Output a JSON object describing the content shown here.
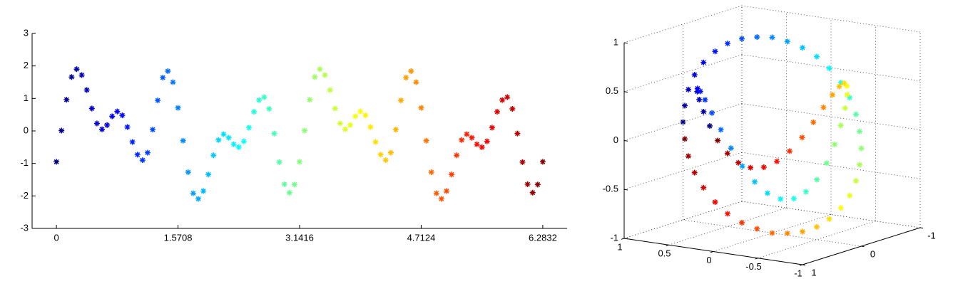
{
  "chart_data": [
    {
      "type": "scatter",
      "marker": "*",
      "colormap": "jet",
      "x": [
        0,
        0.0654,
        0.1309,
        0.1963,
        0.2618,
        0.3272,
        0.3927,
        0.4581,
        0.5236,
        0.589,
        0.6545,
        0.7199,
        0.7854,
        0.8508,
        0.9163,
        0.9817,
        1.0472,
        1.1126,
        1.1781,
        1.2435,
        1.309,
        1.3744,
        1.4399,
        1.5053,
        1.5708,
        1.6362,
        1.7017,
        1.7671,
        1.8326,
        1.898,
        1.9635,
        2.0289,
        2.0944,
        2.1598,
        2.2253,
        2.2907,
        2.3562,
        2.4216,
        2.4871,
        2.5525,
        2.618,
        2.6834,
        2.7489,
        2.8143,
        2.8798,
        2.9452,
        3.0107,
        3.0761,
        3.1416,
        3.207,
        3.2725,
        3.3379,
        3.4034,
        3.4688,
        3.5343,
        3.5997,
        3.6652,
        3.7306,
        3.7961,
        3.8615,
        3.927,
        3.9924,
        4.0579,
        4.1233,
        4.1888,
        4.2542,
        4.3197,
        4.3851,
        4.4506,
        4.516,
        4.5815,
        4.6469,
        4.7124,
        4.7778,
        4.8433,
        4.9087,
        4.9742,
        5.0396,
        5.1051,
        5.1705,
        5.236,
        5.3014,
        5.3669,
        5.4323,
        5.4978,
        5.5632,
        5.6287,
        5.6941,
        5.7596,
        5.825,
        5.8905,
        5.9559,
        6.0214,
        6.0868,
        6.1523,
        6.2177,
        6.2832
      ],
      "values": [
        -0.95,
        0.01,
        0.96,
        1.66,
        1.9,
        1.72,
        1.26,
        0.69,
        0.23,
        0.05,
        0.18,
        0.45,
        0.6,
        0.48,
        0.12,
        -0.34,
        -0.73,
        -0.9,
        -0.67,
        0.04,
        0.94,
        1.64,
        1.84,
        1.5,
        0.71,
        -0.3,
        -1.27,
        -1.92,
        -2.09,
        -1.85,
        -1.34,
        -0.75,
        -0.28,
        -0.1,
        -0.21,
        -0.41,
        -0.5,
        -0.32,
        0.1,
        0.59,
        0.95,
        1.04,
        0.68,
        -0.08,
        -0.96,
        -1.64,
        -1.9,
        -1.65,
        -0.95,
        0.01,
        0.96,
        1.66,
        1.9,
        1.72,
        1.26,
        0.69,
        0.23,
        0.05,
        0.18,
        0.45,
        0.6,
        0.48,
        0.12,
        -0.34,
        -0.73,
        -0.9,
        -0.67,
        0.04,
        0.94,
        1.64,
        1.84,
        1.5,
        0.71,
        -0.3,
        -1.27,
        -1.92,
        -2.09,
        -1.85,
        -1.34,
        -0.75,
        -0.28,
        -0.1,
        -0.21,
        -0.41,
        -0.5,
        -0.32,
        0.1,
        0.59,
        0.95,
        1.04,
        0.68,
        -0.08,
        -0.96,
        -1.64,
        -1.9,
        -1.65,
        -0.95
      ],
      "xlim": [
        -0.3142,
        6.5973
      ],
      "ylim": [
        -3,
        3
      ],
      "xticks": [
        0,
        1.5708,
        3.1416,
        4.7124,
        6.2832
      ],
      "yticks": [
        -3,
        -2,
        -1,
        0,
        1,
        2,
        3
      ]
    },
    {
      "type": "scatter3d",
      "marker": "*",
      "colormap": "jet",
      "grid": true,
      "series": [
        {
          "x": [
            1,
            0.98,
            0.94,
            0.87,
            0.77,
            0.64,
            0.5,
            0.34,
            0.17,
            0,
            -0.17,
            -0.34,
            -0.5,
            -0.64,
            -0.77,
            -0.87,
            -0.94,
            -0.98,
            -1,
            -0.98,
            -0.94,
            -0.87,
            -0.77,
            -0.64,
            -0.5,
            -0.34,
            -0.17,
            0,
            0.17,
            0.34,
            0.5,
            0.64,
            0.77,
            0.87,
            0.94,
            0.98
          ],
          "y": [
            0,
            0,
            0,
            0,
            0,
            0,
            0,
            0,
            0,
            0,
            0,
            0,
            0,
            0,
            0,
            0,
            0,
            0,
            0,
            0,
            0,
            0,
            0,
            0,
            0,
            0,
            0,
            0,
            0,
            0,
            0,
            0,
            0,
            0,
            0,
            0
          ],
          "z": [
            0,
            0.17,
            0.34,
            0.5,
            0.64,
            0.77,
            0.87,
            0.94,
            0.98,
            1,
            0.98,
            0.94,
            0.87,
            0.77,
            0.64,
            0.5,
            0.34,
            0.17,
            0,
            -0.17,
            -0.34,
            -0.5,
            -0.64,
            -0.77,
            -0.87,
            -0.94,
            -0.98,
            -1,
            -0.98,
            -0.94,
            -0.87,
            -0.77,
            -0.64,
            -0.5,
            -0.34,
            -0.17
          ]
        },
        {
          "x": [
            0.7,
            0.69,
            0.66,
            0.61,
            0.54,
            0.45,
            0.35,
            0.24,
            0.12,
            0,
            -0.12,
            -0.24,
            -0.35,
            -0.45,
            -0.54,
            -0.61,
            -0.66,
            -0.69,
            -0.7,
            -0.69,
            -0.66,
            -0.61,
            -0.54,
            -0.45,
            -0.35,
            -0.24,
            -0.12,
            0,
            0.12,
            0.24,
            0.35,
            0.45,
            0.54,
            0.61,
            0.66,
            0.69
          ],
          "y": [
            0,
            0.12,
            0.24,
            0.35,
            0.45,
            0.54,
            0.61,
            0.66,
            0.69,
            0.7,
            0.69,
            0.66,
            0.61,
            0.54,
            0.45,
            0.35,
            0.24,
            0.12,
            0,
            -0.12,
            -0.24,
            -0.35,
            -0.45,
            -0.54,
            -0.61,
            -0.66,
            -0.69,
            -0.7,
            -0.69,
            -0.66,
            -0.61,
            -0.54,
            -0.45,
            -0.35,
            -0.24,
            -0.12
          ],
          "z": [
            0,
            0.17,
            0.32,
            0.43,
            0.49,
            0.49,
            0.43,
            0.32,
            0.17,
            0,
            -0.17,
            -0.32,
            -0.43,
            -0.49,
            -0.49,
            -0.43,
            -0.32,
            -0.17,
            0,
            0.17,
            0.32,
            0.43,
            0.49,
            0.49,
            0.43,
            0.32,
            0.17,
            0,
            -0.17,
            -0.32,
            -0.43,
            -0.49,
            -0.49,
            -0.43,
            -0.32,
            -0.17
          ]
        }
      ],
      "xlim": [
        -1,
        1
      ],
      "ylim": [
        -1,
        1
      ],
      "zlim": [
        -1,
        1
      ],
      "xticks": [
        -1,
        -0.5,
        0,
        0.5,
        1
      ],
      "yticks": [
        -1,
        0,
        1
      ],
      "zticks": [
        -1,
        -0.5,
        0,
        0.5,
        1
      ]
    }
  ]
}
